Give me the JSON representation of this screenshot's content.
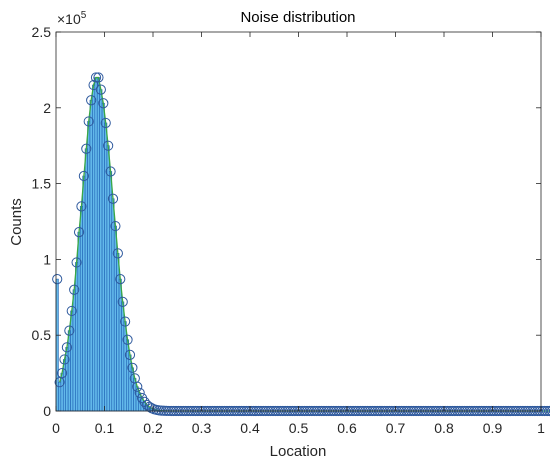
{
  "chart_data": {
    "type": "bar",
    "title": "Noise distribution",
    "xlabel": "Location",
    "ylabel": "Counts",
    "xlim": [
      0,
      1
    ],
    "ylim": [
      0,
      250000
    ],
    "x_ticks": [
      "0",
      "0.1",
      "0.2",
      "0.3",
      "0.4",
      "0.5",
      "0.6",
      "0.7",
      "0.8",
      "0.9",
      "1"
    ],
    "y_ticks": [
      "0",
      "0.5",
      "1",
      "1.5",
      "2",
      "2.5"
    ],
    "y_exponent_base": "×10",
    "y_exponent_power": "5",
    "grid": false,
    "colors": {
      "bars_fill": "#62b8ea",
      "bars_edge": "#1f62b4",
      "markers": "#2f5a9e",
      "fit_line": "#3aa845",
      "axis": "#262626"
    },
    "histogram": {
      "bin_start": 0,
      "bin_width": 0.005,
      "counts": [
        87000,
        19000,
        25000,
        34000,
        42000,
        53000,
        66000,
        80000,
        98000,
        118000,
        135000,
        155000,
        173000,
        191000,
        205000,
        215000,
        220000,
        220000,
        212000,
        203000,
        190000,
        175000,
        158000,
        140000,
        122000,
        104000,
        87000,
        72000,
        59000,
        47000,
        37000,
        28500,
        21500,
        16000,
        12000,
        8500,
        6000,
        4000,
        2700,
        1800,
        1100,
        700,
        400,
        250,
        150,
        80,
        40,
        20,
        10,
        5,
        0,
        0,
        0,
        0,
        0,
        0,
        0,
        0,
        0,
        0,
        0,
        0,
        0,
        0,
        0,
        0,
        0,
        0,
        0,
        0,
        0,
        0,
        0,
        0,
        0,
        0,
        0,
        0,
        0,
        0,
        0,
        0,
        0,
        0,
        0,
        0,
        0,
        0,
        0,
        0,
        0,
        0,
        0,
        0,
        0,
        0,
        0,
        0,
        0,
        0,
        0,
        0,
        0,
        0,
        0,
        0,
        0,
        0,
        0,
        0,
        0,
        0,
        0,
        0,
        0,
        0,
        0,
        0,
        0,
        0,
        0,
        0,
        0,
        0,
        0,
        0,
        0,
        0,
        0,
        0,
        0,
        0,
        0,
        0,
        0,
        0,
        0,
        0,
        0,
        0,
        0,
        0,
        0,
        0,
        0,
        0,
        0,
        0,
        0,
        0,
        0,
        0,
        0,
        0,
        0,
        0,
        0,
        0,
        0,
        0,
        0,
        0,
        0,
        0,
        0,
        0,
        0,
        0,
        0,
        0,
        0,
        0,
        0,
        0,
        0,
        0,
        0,
        0,
        0,
        0,
        0,
        0,
        0,
        0,
        0,
        0,
        0,
        0,
        0,
        0,
        0,
        0,
        0,
        0,
        0,
        0,
        0,
        0,
        0,
        0,
        0,
        0,
        0,
        0,
        0,
        0,
        0
      ]
    },
    "fit": {
      "type": "lognormal",
      "peak_x": 0.07,
      "peak_y": 220000
    }
  }
}
